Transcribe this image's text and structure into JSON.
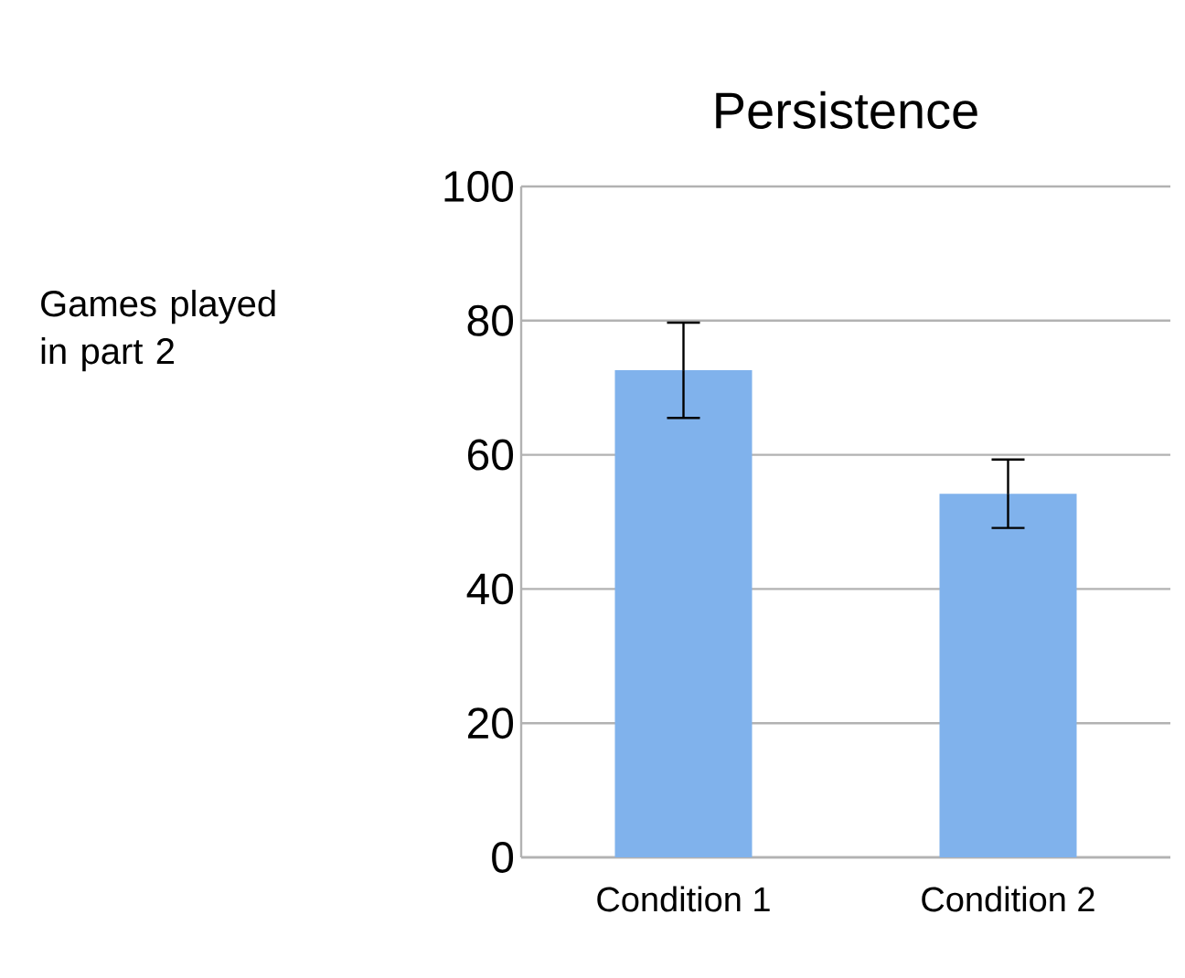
{
  "chart_data": {
    "type": "bar",
    "title": "Persistence",
    "ylabel": "Games played in part 2",
    "categories": [
      "Condition 1",
      "Condition 2"
    ],
    "values": [
      72.6,
      54.2
    ],
    "errors": [
      7.1,
      5.1
    ],
    "color": "#80b2ec",
    "ylim": [
      0,
      100
    ],
    "yticks": [
      0,
      20,
      40,
      60,
      80,
      100
    ],
    "grid": "y"
  }
}
